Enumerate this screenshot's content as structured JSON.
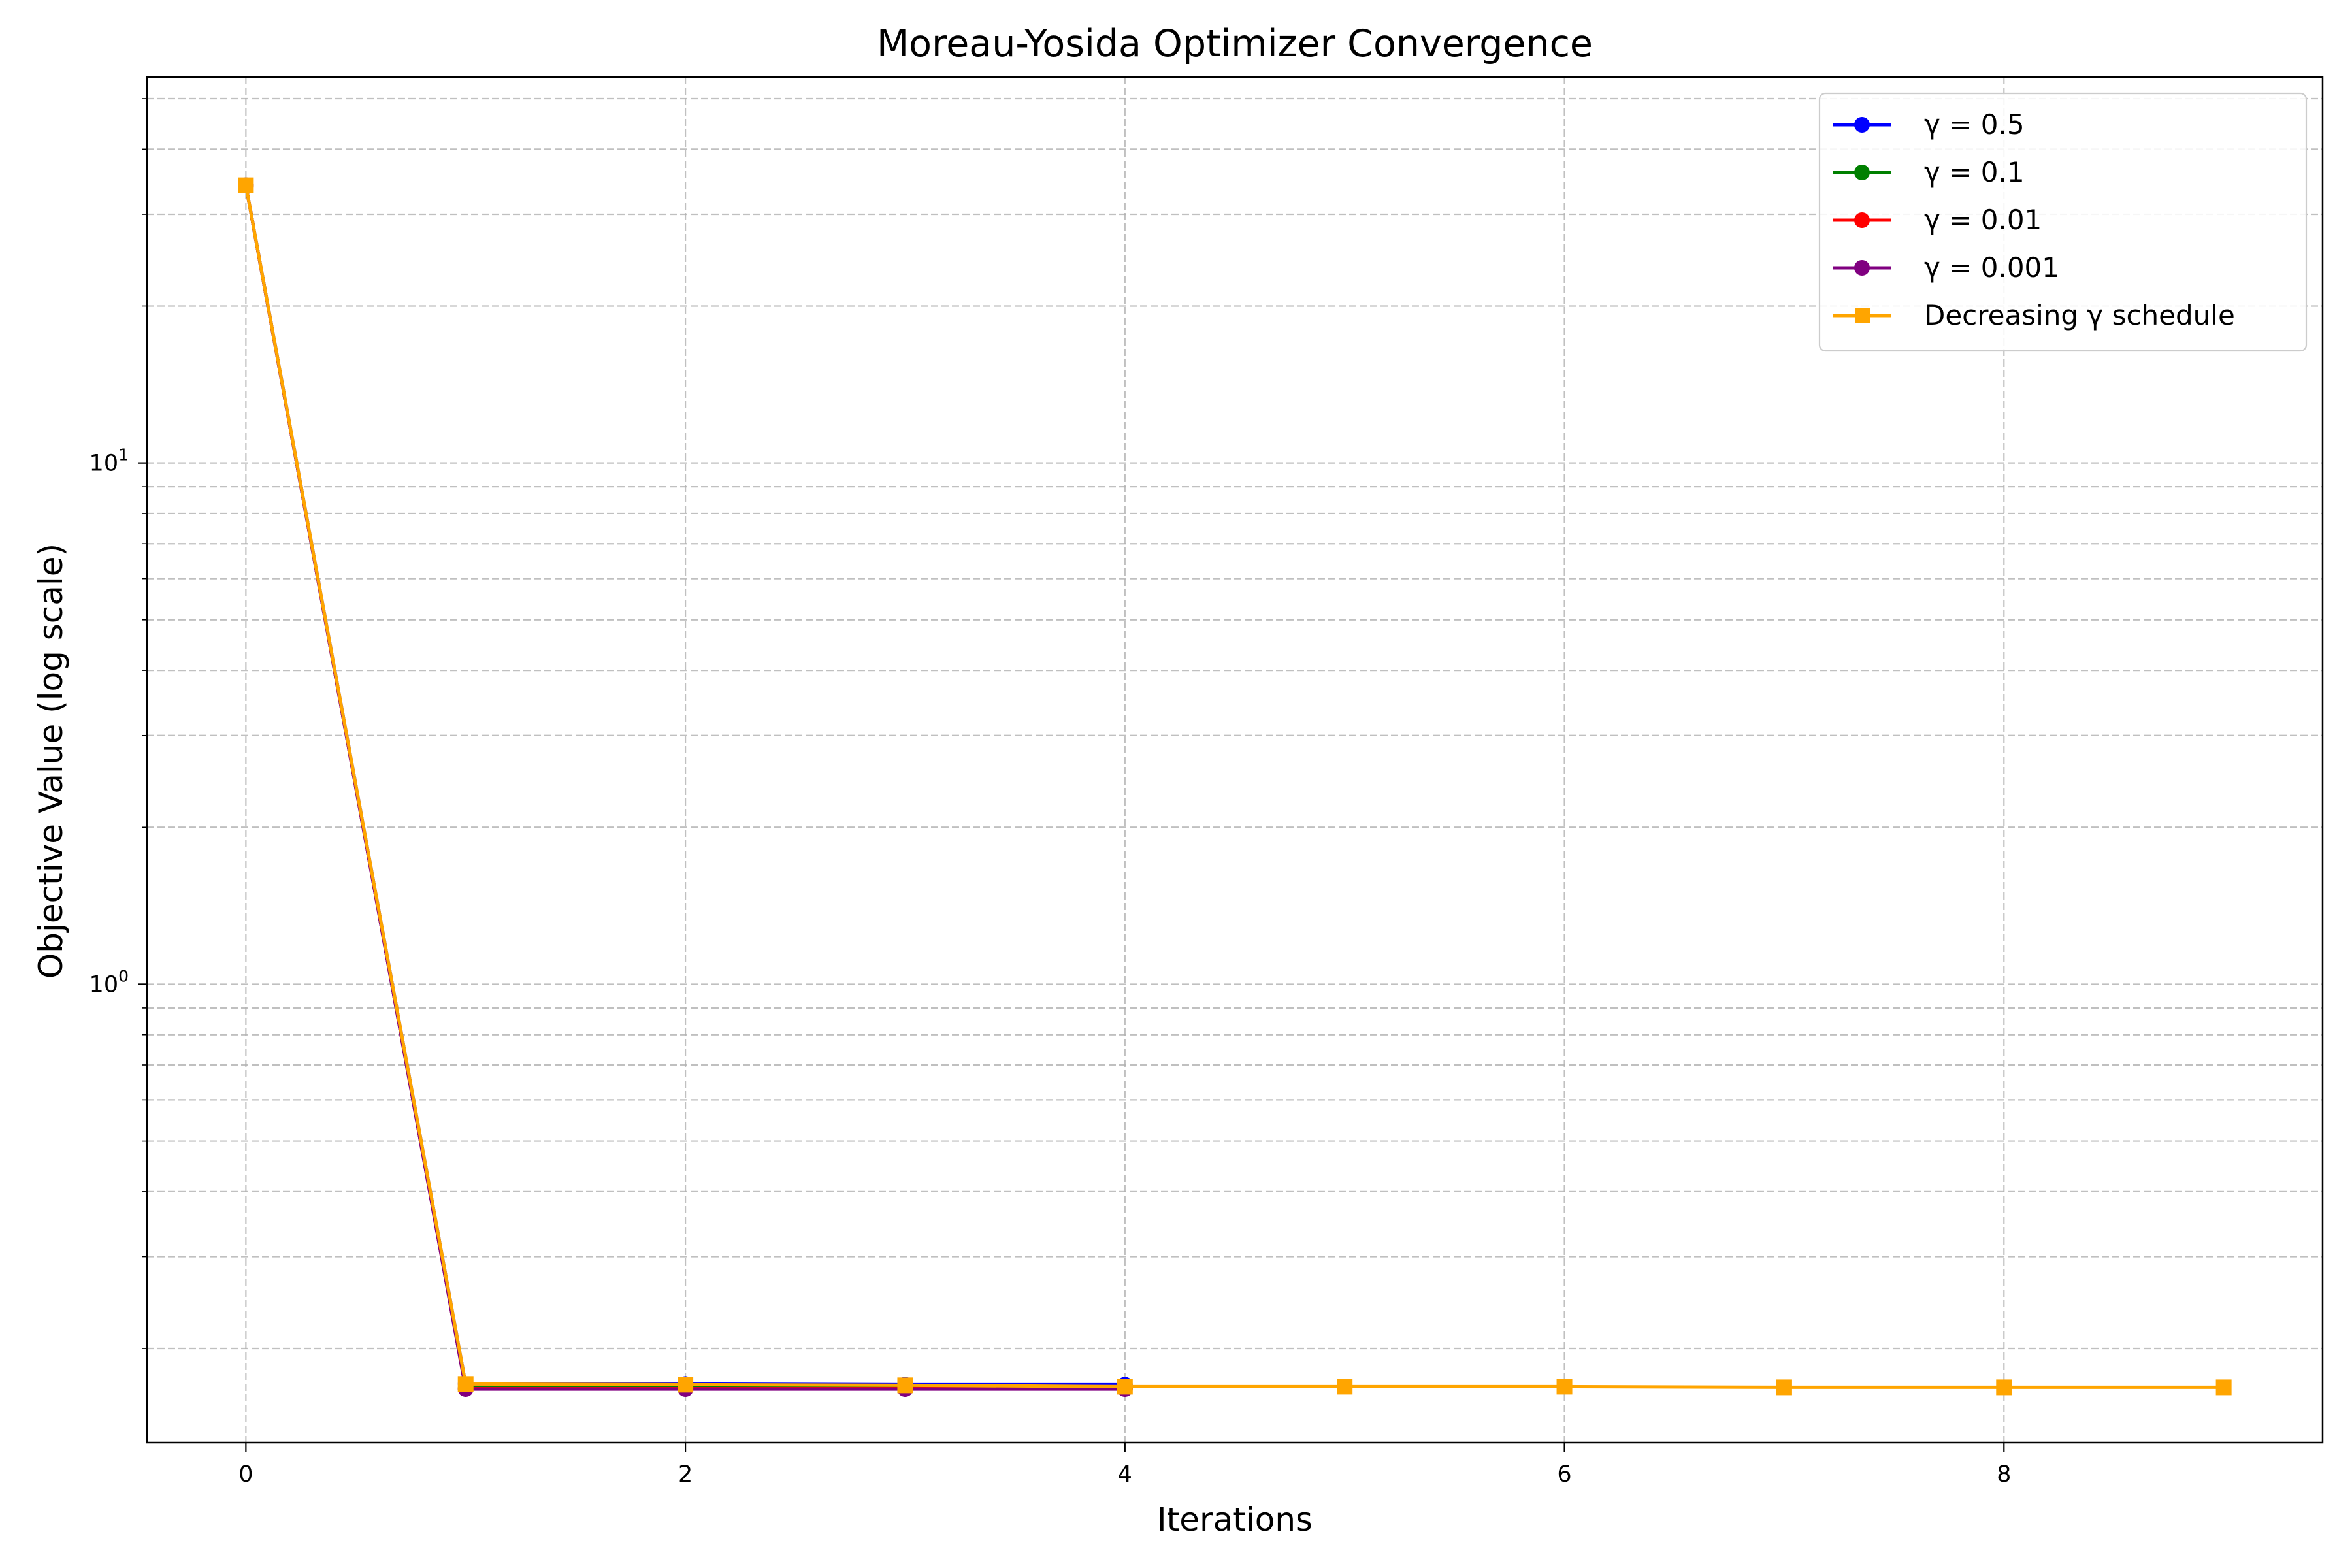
{
  "chart_data": {
    "type": "line",
    "title": "Moreau-Yosida Optimizer Convergence",
    "xlabel": "Iterations",
    "ylabel": "Objective Value (log scale)",
    "x_ticks": [
      {
        "value": 0,
        "label": "0"
      },
      {
        "value": 2,
        "label": "2"
      },
      {
        "value": 4,
        "label": "4"
      },
      {
        "value": 6,
        "label": "6"
      },
      {
        "value": 8,
        "label": "8"
      }
    ],
    "y_ticks": [
      {
        "value": 1,
        "base": "10",
        "exp": "0"
      },
      {
        "value": 10,
        "base": "10",
        "exp": "1"
      }
    ],
    "xlim": [
      -0.45,
      9.45
    ],
    "ylim": [
      0.132,
      55
    ],
    "yscale": "log",
    "grid": true,
    "legend_position": "top-right",
    "series": [
      {
        "name": "γ = 0.5",
        "color": "#0000ff",
        "marker": "circle",
        "x": [
          0,
          1,
          2,
          3,
          4
        ],
        "y": [
          34.1,
          0.171,
          0.171,
          0.1705,
          0.1705
        ]
      },
      {
        "name": "γ = 0.1",
        "color": "#008000",
        "marker": "circle",
        "x": [
          0,
          1,
          2,
          3,
          4
        ],
        "y": [
          34.1,
          0.168,
          0.168,
          0.168,
          0.168
        ]
      },
      {
        "name": "γ = 0.01",
        "color": "#ff0000",
        "marker": "circle",
        "x": [
          0,
          1,
          2,
          3,
          4
        ],
        "y": [
          34.1,
          0.1675,
          0.1675,
          0.1675,
          0.1675
        ]
      },
      {
        "name": "γ = 0.001",
        "color": "#800080",
        "marker": "circle",
        "x": [
          0,
          1,
          2,
          3,
          4
        ],
        "y": [
          34.1,
          0.1672,
          0.1672,
          0.1672,
          0.1672
        ]
      },
      {
        "name": "Decreasing γ schedule",
        "color": "#ffa500",
        "marker": "square",
        "x": [
          0,
          1,
          2,
          3,
          4,
          5,
          6,
          7,
          8,
          9
        ],
        "y": [
          34.1,
          0.171,
          0.1705,
          0.17,
          0.169,
          0.169,
          0.169,
          0.1685,
          0.1685,
          0.1685
        ]
      }
    ]
  }
}
